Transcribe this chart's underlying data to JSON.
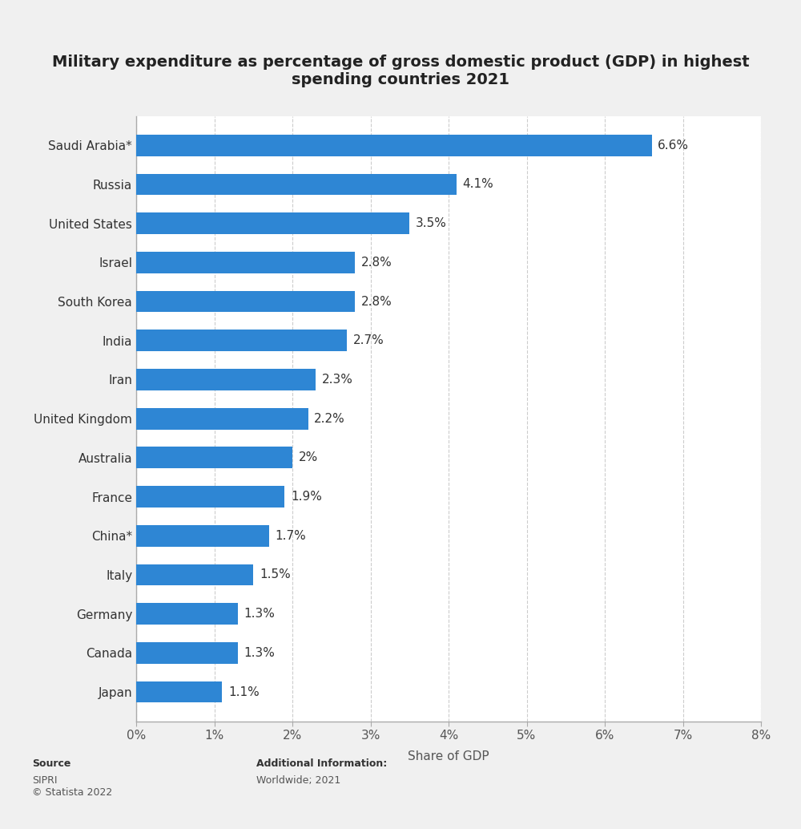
{
  "title": "Military expenditure as percentage of gross domestic product (GDP) in highest\nspending countries 2021",
  "xlabel": "Share of GDP",
  "countries": [
    "Saudi Arabia*",
    "Russia",
    "United States",
    "Israel",
    "South Korea",
    "India",
    "Iran",
    "United Kingdom",
    "Australia",
    "France",
    "China*",
    "Italy",
    "Germany",
    "Canada",
    "Japan"
  ],
  "values": [
    6.6,
    4.1,
    3.5,
    2.8,
    2.8,
    2.7,
    2.3,
    2.2,
    2.0,
    1.9,
    1.7,
    1.5,
    1.3,
    1.3,
    1.1
  ],
  "labels": [
    "6.6%",
    "4.1%",
    "3.5%",
    "2.8%",
    "2.8%",
    "2.7%",
    "2.3%",
    "2.2%",
    "2%",
    "1.9%",
    "1.7%",
    "1.5%",
    "1.3%",
    "1.3%",
    "1.1%"
  ],
  "bar_color": "#2e86d4",
  "fig_background_color": "#f0f0f0",
  "plot_bg_color": "#ffffff",
  "title_fontsize": 14,
  "label_fontsize": 11,
  "tick_fontsize": 11,
  "xlabel_fontsize": 11,
  "xlim": [
    0,
    8
  ],
  "xticks": [
    0,
    1,
    2,
    3,
    4,
    5,
    6,
    7,
    8
  ],
  "xtick_labels": [
    "0%",
    "1%",
    "2%",
    "3%",
    "4%",
    "5%",
    "6%",
    "7%",
    "8%"
  ],
  "source_label": "Source",
  "source_body": "SIPRI\n© Statista 2022",
  "additional_label": "Additional Information:",
  "additional_body": "Worldwide; 2021"
}
